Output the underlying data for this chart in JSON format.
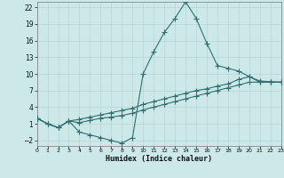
{
  "xlabel": "Humidex (Indice chaleur)",
  "background_color": "#cce8e8",
  "line_color": "#2d7070",
  "grid_color": "#b8d4d4",
  "xlim": [
    0,
    23
  ],
  "ylim": [
    -3,
    23
  ],
  "yticks": [
    -2,
    1,
    4,
    7,
    10,
    13,
    16,
    19,
    22
  ],
  "xticks": [
    0,
    1,
    2,
    3,
    4,
    5,
    6,
    7,
    8,
    9,
    10,
    11,
    12,
    13,
    14,
    15,
    16,
    17,
    18,
    19,
    20,
    21,
    22,
    23
  ],
  "series1_x": [
    0,
    1,
    2,
    3,
    4,
    5,
    6,
    7,
    8,
    9,
    10,
    11,
    12,
    13,
    14,
    15,
    16,
    17,
    18,
    19,
    20,
    21,
    22,
    23
  ],
  "series1_y": [
    2,
    1,
    0.3,
    1.5,
    -0.5,
    -1.0,
    -1.5,
    -2.0,
    -2.5,
    -1.5,
    10,
    14,
    17.5,
    20,
    23,
    20,
    15.5,
    11.5,
    11,
    10.5,
    9.5,
    8.5,
    8.5,
    8.5
  ],
  "series2_x": [
    0,
    1,
    2,
    3,
    4,
    5,
    6,
    7,
    8,
    9,
    10,
    11,
    12,
    13,
    14,
    15,
    16,
    17,
    18,
    19,
    20,
    21,
    22,
    23
  ],
  "series2_y": [
    2,
    1,
    0.3,
    1.5,
    1.8,
    2.2,
    2.6,
    3.0,
    3.4,
    3.8,
    4.5,
    5.0,
    5.5,
    6.0,
    6.5,
    7.0,
    7.3,
    7.8,
    8.2,
    9.0,
    9.5,
    8.7,
    8.6,
    8.5
  ],
  "series3_x": [
    0,
    1,
    2,
    3,
    4,
    5,
    6,
    7,
    8,
    9,
    10,
    11,
    12,
    13,
    14,
    15,
    16,
    17,
    18,
    19,
    20,
    21,
    22,
    23
  ],
  "series3_y": [
    2,
    1,
    0.3,
    1.5,
    1.2,
    1.6,
    2.0,
    2.2,
    2.5,
    2.9,
    3.5,
    4.0,
    4.5,
    5.0,
    5.5,
    6.0,
    6.5,
    7.0,
    7.5,
    8.0,
    8.5,
    8.5,
    8.5,
    8.5
  ],
  "xlabel_fontsize": 6.0,
  "ytick_fontsize": 5.5,
  "xtick_fontsize": 4.5,
  "linewidth": 0.8,
  "markersize": 2.0
}
